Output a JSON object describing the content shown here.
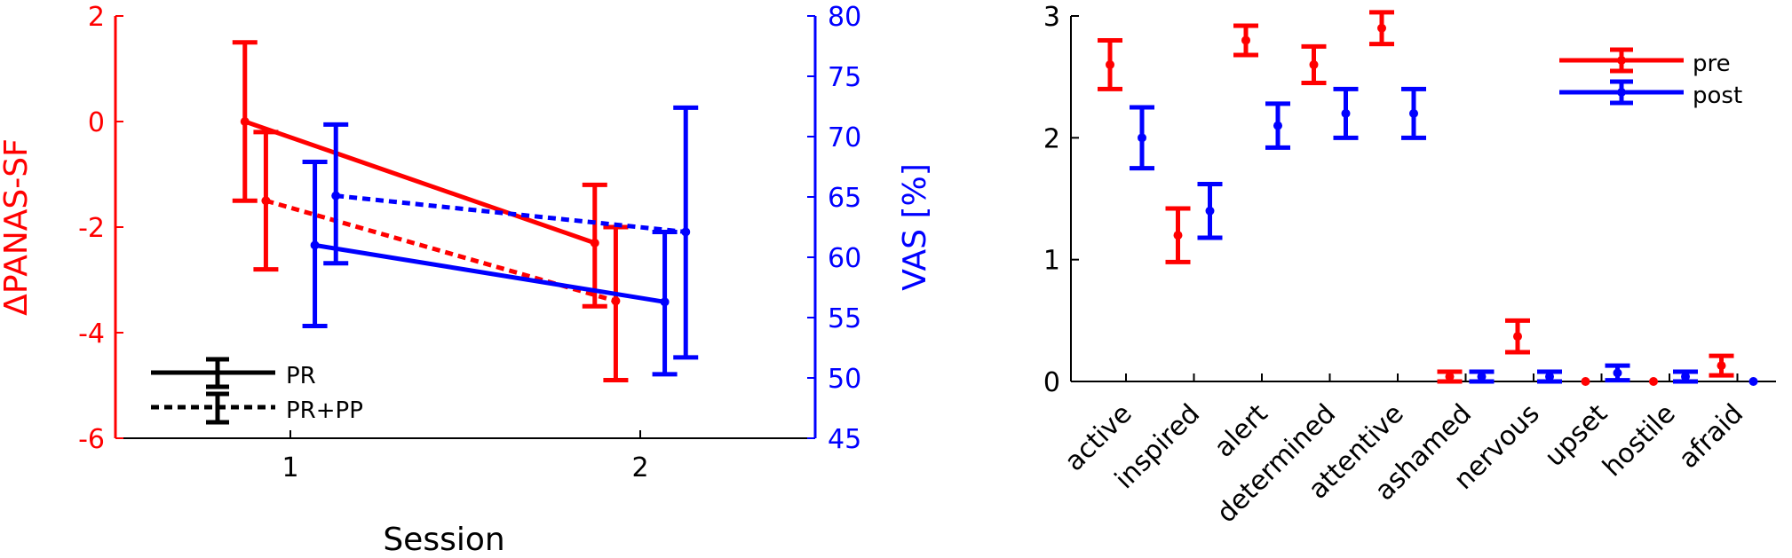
{
  "colors": {
    "red": "#ff0000",
    "blue": "#0000ff",
    "black": "#000000"
  },
  "chart_data": [
    {
      "type": "line",
      "xlabel": "Session",
      "ylabel_left": "ΔPANAS-SF",
      "ylabel_right": "VAS [%]",
      "x_ticks": [
        "1",
        "2"
      ],
      "xlim": [
        0.5,
        2.5
      ],
      "ylim_left": [
        -6,
        2
      ],
      "yticks_left": [
        "2",
        "0",
        "-2",
        "-4",
        "-6"
      ],
      "ylim_right": [
        45,
        80
      ],
      "yticks_right": [
        "80",
        "75",
        "70",
        "65",
        "60",
        "55",
        "50",
        "45"
      ],
      "legend": {
        "position": "bottom-left",
        "entries": [
          "PR",
          "PR+PP"
        ]
      },
      "series": [
        {
          "axis": "left",
          "color": "red",
          "style": "solid",
          "x": [
            0.87,
            1.87
          ],
          "y": [
            0,
            -2.3
          ],
          "err_low": [
            -1.5,
            -3.5
          ],
          "err_high": [
            1.5,
            -1.2
          ]
        },
        {
          "axis": "left",
          "color": "red",
          "style": "dotted",
          "x": [
            0.93,
            1.93
          ],
          "y": [
            -1.5,
            -3.4
          ],
          "err_low": [
            -2.8,
            -4.9
          ],
          "err_high": [
            -0.2,
            -2.0
          ]
        },
        {
          "axis": "right",
          "color": "blue",
          "style": "solid",
          "x": [
            1.07,
            2.07
          ],
          "y": [
            61,
            56.3
          ],
          "err_low": [
            54.3,
            50.3
          ],
          "err_high": [
            67.9,
            62.1
          ]
        },
        {
          "axis": "right",
          "color": "blue",
          "style": "dotted",
          "x": [
            1.13,
            2.13
          ],
          "y": [
            65.1,
            62.1
          ],
          "err_low": [
            59.5,
            51.7
          ],
          "err_high": [
            71,
            72.4
          ]
        }
      ]
    },
    {
      "type": "scatter",
      "categories": [
        "active",
        "inspired",
        "alert",
        "determined",
        "attentive",
        "ashamed",
        "nervous",
        "upset",
        "hostile",
        "afraid"
      ],
      "ylim": [
        0,
        3
      ],
      "yticks": [
        "0",
        "1",
        "2",
        "3"
      ],
      "legend": {
        "position": "top-right",
        "entries": [
          "pre",
          "post"
        ]
      },
      "series": [
        {
          "name": "pre",
          "color": "red",
          "values": [
            2.6,
            1.2,
            2.8,
            2.6,
            2.9,
            0.04,
            0.37,
            0,
            0,
            0.13
          ],
          "err": [
            0.2,
            0.22,
            0.12,
            0.15,
            0.13,
            0.04,
            0.13,
            0,
            0,
            0.08
          ]
        },
        {
          "name": "post",
          "color": "blue",
          "values": [
            2.0,
            1.4,
            2.1,
            2.2,
            2.2,
            0.04,
            0.04,
            0.07,
            0.04,
            0
          ],
          "err": [
            0.25,
            0.22,
            0.18,
            0.2,
            0.2,
            0.04,
            0.04,
            0.06,
            0.04,
            0
          ]
        }
      ]
    }
  ]
}
